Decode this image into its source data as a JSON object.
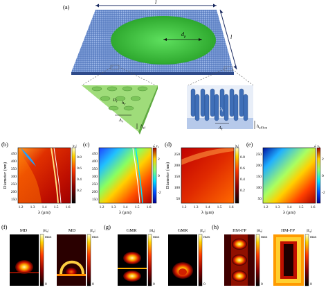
{
  "figure": {
    "panel_labels": [
      "(a)",
      "(b)",
      "(c)",
      "(d)",
      "(e)",
      "(f)",
      "(g)",
      "(h)"
    ],
    "schematic": {
      "length_label": "l",
      "length_label_side": "l",
      "diameter_label": "d",
      "diameter_sub": "p",
      "left_inset": {
        "D_label": "D",
        "D_sub": "r",
        "h_label": "h",
        "h_sub": "r",
        "lambda_label": "Λ",
        "lambda_sub": "r",
        "hsi_label": "h",
        "hsi_sub": "si"
      },
      "right_inset": {
        "D_label": "D",
        "D_sub": "t",
        "lambda_label": "Λ",
        "lambda_sub": "t",
        "hsilica_label": "h",
        "hsilica_sub": "silica"
      }
    },
    "maps": {
      "x_label": "λ (μm)",
      "y_label": "Diameter (nm)",
      "b": {
        "cbar_title": "|r",
        "cbar_sub": "s",
        "cbar_title_end": "|",
        "cbar_ticks": [
          "0.8",
          "0.6",
          "0.4",
          "0.2"
        ],
        "y_ticks": [
          "450",
          "400",
          "350",
          "300",
          "250",
          "200",
          "150"
        ],
        "x_ticks": [
          "1.2",
          "1.3",
          "1.4",
          "1.5",
          "1.6"
        ]
      },
      "c": {
        "cbar_title": "∠ r",
        "cbar_sub": "s",
        "cbar_ticks": [
          "2",
          "0",
          "-2"
        ],
        "y_ticks": [
          "450",
          "400",
          "350",
          "300",
          "250",
          "200",
          "150"
        ],
        "x_ticks": [
          "1.2",
          "1.3",
          "1.4",
          "1.5",
          "1.6"
        ]
      },
      "d": {
        "cbar_title": "|t",
        "cbar_sub": "s",
        "cbar_title_end": "|",
        "cbar_ticks": [
          "0.8",
          "0.6",
          "0.4",
          "0.2"
        ],
        "y_ticks": [
          "250",
          "200",
          "150",
          "100",
          "50"
        ],
        "x_ticks": [
          "1.2",
          "1.3",
          "1.4",
          "1.5",
          "1.6"
        ]
      },
      "e": {
        "cbar_title": "∠ t",
        "cbar_sub": "s",
        "cbar_ticks": [
          "2",
          "0",
          "-2"
        ],
        "y_ticks": [
          "250",
          "200",
          "150",
          "100",
          "50"
        ],
        "x_ticks": [
          "1.2",
          "1.3",
          "1.4",
          "1.5",
          "1.6"
        ]
      }
    },
    "fields": {
      "f": {
        "left_title": "MD",
        "right_title": "MD",
        "cbar1": "|H",
        "cbar1_sub": "x",
        "cbar1_end": "|",
        "cbar2": "|E",
        "cbar2_sub": "y",
        "cbar2_end": "|",
        "max": "max",
        "zero": "0"
      },
      "g": {
        "left_title": "GMR",
        "right_title": "GMR",
        "cbar1": "|H",
        "cbar1_sub": "x",
        "cbar1_end": "|",
        "cbar2": "|E",
        "cbar2_sub": "y",
        "cbar2_end": "|",
        "max": "max",
        "zero": "0"
      },
      "h": {
        "left_title": "HM-FP",
        "right_title": "HM-FP",
        "cbar1": "|H",
        "cbar1_sub": "x",
        "cbar1_end": "|",
        "cbar2": "|E",
        "cbar2_sub": "y",
        "cbar2_end": "|",
        "max": "max",
        "zero": "0"
      }
    },
    "colors": {
      "substrate_blue": "#5b7fbf",
      "disk_green": "#3ec23e",
      "inset_green": "#8fd26e",
      "pillar_blue": "#3f6fb8"
    }
  }
}
